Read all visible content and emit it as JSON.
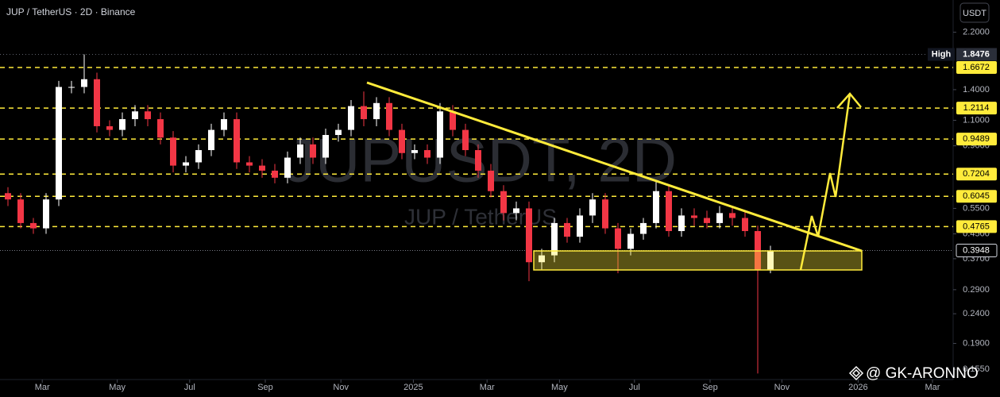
{
  "header": {
    "symbol_title": "JUP / TetherUS · 2D · Binance",
    "currency_button": "USDT"
  },
  "chart_data": {
    "type": "candlestick",
    "watermark": "JUPUSDT, 2D",
    "watermark_subtitle": "JUP / TetherUS",
    "open": [
      0.62,
      0.59,
      0.49,
      0.47,
      0.59,
      1.43,
      1.43,
      1.52,
      1.05,
      1.02,
      1.11,
      1.18,
      1.11,
      0.96,
      0.77,
      0.79,
      0.87,
      1.02,
      1.11,
      0.79,
      0.77,
      0.74,
      0.7,
      0.82,
      0.91,
      0.82,
      0.98,
      1.02,
      1.23,
      1.11,
      1.26,
      1.02,
      0.85,
      0.87,
      0.82,
      1.18,
      1.02,
      0.87,
      0.74,
      0.63,
      0.53,
      0.55,
      0.36,
      0.38,
      0.49,
      0.44,
      0.52,
      0.59,
      0.47,
      0.4,
      0.45,
      0.49,
      0.63,
      0.46,
      0.52,
      0.51,
      0.49,
      0.53,
      0.51,
      0.46,
      0.34
    ],
    "high": [
      0.65,
      0.62,
      0.51,
      0.62,
      1.5,
      1.5,
      1.8476,
      1.6,
      1.1,
      1.17,
      1.24,
      1.24,
      1.17,
      1.01,
      0.83,
      0.91,
      1.07,
      1.17,
      1.17,
      0.83,
      0.81,
      0.78,
      0.86,
      0.96,
      0.96,
      1.03,
      1.07,
      1.29,
      1.38,
      1.32,
      1.32,
      1.07,
      0.91,
      0.91,
      1.26,
      1.24,
      1.07,
      0.91,
      0.78,
      0.66,
      0.58,
      0.58,
      0.4,
      0.51,
      0.51,
      0.55,
      0.62,
      0.62,
      0.49,
      0.47,
      0.51,
      0.68,
      0.66,
      0.55,
      0.55,
      0.54,
      0.56,
      0.56,
      0.54,
      0.48,
      0.41
    ],
    "low": [
      0.56,
      0.47,
      0.45,
      0.45,
      0.56,
      1.36,
      1.36,
      1.0,
      0.97,
      0.97,
      1.05,
      1.05,
      0.91,
      0.73,
      0.73,
      0.75,
      0.83,
      0.97,
      0.75,
      0.73,
      0.7,
      0.67,
      0.67,
      0.78,
      0.78,
      0.78,
      0.93,
      0.97,
      1.05,
      1.05,
      0.97,
      0.81,
      0.81,
      0.78,
      0.78,
      0.97,
      0.83,
      0.7,
      0.6,
      0.5,
      0.5,
      0.31,
      0.34,
      0.36,
      0.42,
      0.42,
      0.49,
      0.45,
      0.33,
      0.38,
      0.43,
      0.47,
      0.44,
      0.44,
      0.48,
      0.47,
      0.47,
      0.48,
      0.44,
      0.15,
      0.33
    ],
    "close": [
      0.59,
      0.49,
      0.47,
      0.59,
      1.43,
      1.43,
      1.52,
      1.05,
      1.02,
      1.11,
      1.18,
      1.11,
      0.96,
      0.77,
      0.79,
      0.87,
      1.02,
      1.11,
      0.79,
      0.77,
      0.74,
      0.7,
      0.82,
      0.91,
      0.82,
      0.98,
      1.02,
      1.23,
      1.11,
      1.26,
      1.02,
      0.85,
      0.87,
      0.82,
      1.18,
      1.02,
      0.87,
      0.74,
      0.63,
      0.53,
      0.55,
      0.36,
      0.38,
      0.49,
      0.44,
      0.52,
      0.59,
      0.47,
      0.4,
      0.45,
      0.49,
      0.63,
      0.46,
      0.52,
      0.51,
      0.49,
      0.53,
      0.51,
      0.46,
      0.34,
      0.3948
    ],
    "up_color": "#ffffff",
    "down_color": "#f23645",
    "log_scale": true,
    "ylim": [
      0.143,
      2.835
    ],
    "yticks": [
      {
        "value": 2.2,
        "label": "2.2000"
      },
      {
        "value": 1.4,
        "label": "1.4000"
      },
      {
        "value": 1.1,
        "label": "1.1000"
      },
      {
        "value": 0.9,
        "label": "0.9000"
      },
      {
        "value": 0.55,
        "label": "0.5500"
      },
      {
        "value": 0.45,
        "label": "0.4500"
      },
      {
        "value": 0.37,
        "label": "0.3700"
      },
      {
        "value": 0.29,
        "label": "0.2900"
      },
      {
        "value": 0.24,
        "label": "0.2400"
      },
      {
        "value": 0.19,
        "label": "0.1900"
      },
      {
        "value": 0.155,
        "label": "0.1550"
      }
    ],
    "xlim": [
      -0.625,
      74.375
    ],
    "xticks": [
      {
        "value": 2.7,
        "label": "Mar"
      },
      {
        "value": 8.6,
        "label": "May"
      },
      {
        "value": 14.3,
        "label": "Jul"
      },
      {
        "value": 20.25,
        "label": "Sep"
      },
      {
        "value": 26.2,
        "label": "Nov"
      },
      {
        "value": 31.9,
        "label": "2025"
      },
      {
        "value": 37.7,
        "label": "Mar"
      },
      {
        "value": 43.4,
        "label": "May"
      },
      {
        "value": 49.3,
        "label": "Jul"
      },
      {
        "value": 55.25,
        "label": "Sep"
      },
      {
        "value": 60.9,
        "label": "Nov"
      },
      {
        "value": 66.9,
        "label": "2026"
      },
      {
        "value": 72.75,
        "label": "Mar"
      }
    ],
    "levels": [
      1.6672,
      1.2114,
      0.9489,
      0.7204,
      0.6045,
      0.4765
    ],
    "level_color": "#ffeb3b",
    "high_marker": {
      "label": "High",
      "value": 1.8476
    },
    "last_price": 0.3948
  },
  "footer": {
    "watermark": "@ GK-ARONNO"
  }
}
